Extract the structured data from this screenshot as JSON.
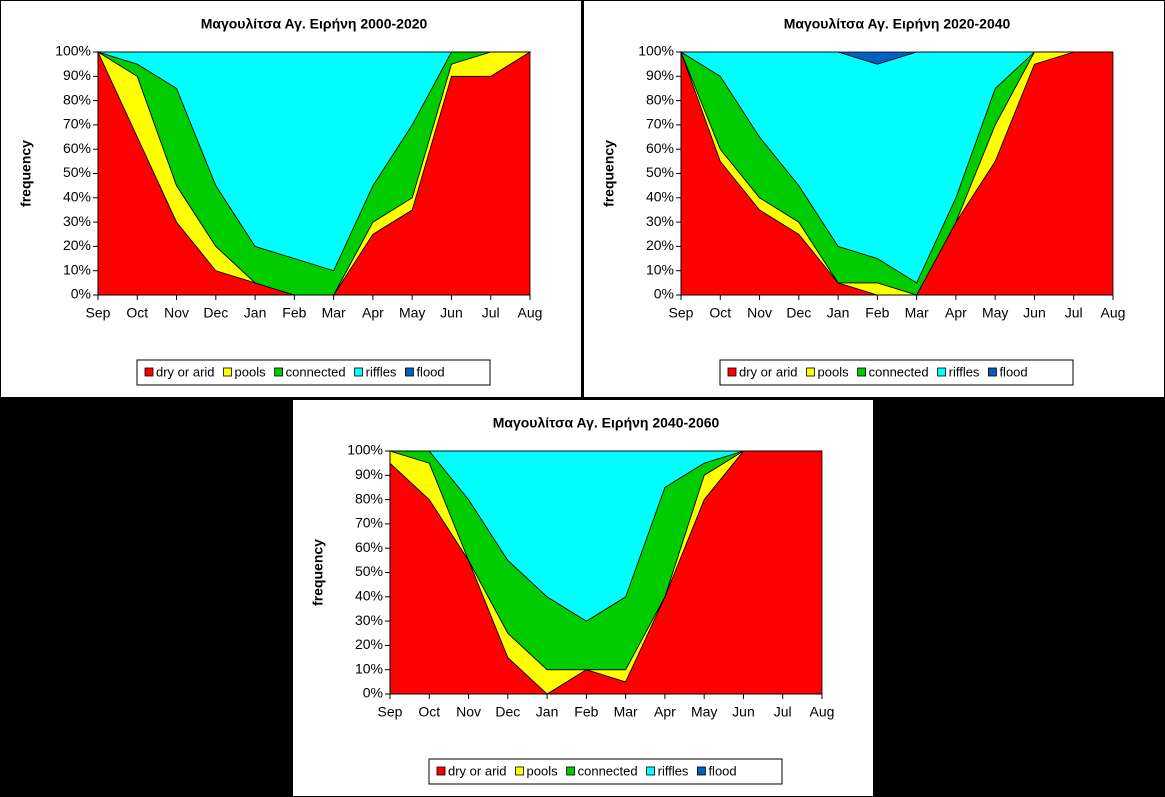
{
  "chart_data": [
    {
      "type": "area",
      "stacked": true,
      "title": "Μαγουλίτσα Αγ. Ειρήνη 2000-2020",
      "y_label": "frequency",
      "categories": [
        "Sep",
        "Oct",
        "Nov",
        "Dec",
        "Jan",
        "Feb",
        "Mar",
        "Apr",
        "May",
        "Jun",
        "Jul",
        "Aug"
      ],
      "ylim": [
        0,
        100
      ],
      "yticks": [
        {
          "value": 0,
          "label": "0%"
        },
        {
          "value": 10,
          "label": "10%"
        },
        {
          "value": 20,
          "label": "20%"
        },
        {
          "value": 30,
          "label": "30%"
        },
        {
          "value": 40,
          "label": "40%"
        },
        {
          "value": 50,
          "label": "50%"
        },
        {
          "value": 60,
          "label": "60%"
        },
        {
          "value": 70,
          "label": "70%"
        },
        {
          "value": 80,
          "label": "80%"
        },
        {
          "value": 90,
          "label": "90%"
        },
        {
          "value": 100,
          "label": "100%"
        }
      ],
      "series": [
        {
          "name": "dry or arid",
          "color": "#ff0000",
          "values": [
            100,
            65,
            30,
            10,
            5,
            0,
            0,
            25,
            35,
            90,
            90,
            100
          ]
        },
        {
          "name": "pools",
          "color": "#ffff00",
          "values": [
            0,
            25,
            15,
            10,
            0,
            0,
            0,
            5,
            5,
            5,
            10,
            0
          ]
        },
        {
          "name": "connected",
          "color": "#00cc00",
          "values": [
            0,
            5,
            40,
            25,
            15,
            15,
            10,
            15,
            30,
            5,
            0,
            0
          ]
        },
        {
          "name": "riffles",
          "color": "#00ffff",
          "values": [
            0,
            5,
            15,
            55,
            80,
            85,
            90,
            55,
            30,
            0,
            0,
            0
          ]
        },
        {
          "name": "flood",
          "color": "#0060c0",
          "values": [
            0,
            0,
            0,
            0,
            0,
            0,
            0,
            0,
            0,
            0,
            0,
            0
          ]
        }
      ]
    },
    {
      "type": "area",
      "stacked": true,
      "title": "Μαγουλίτσα Αγ. Ειρήνη 2020-2040",
      "y_label": "frequency",
      "categories": [
        "Sep",
        "Oct",
        "Nov",
        "Dec",
        "Jan",
        "Feb",
        "Mar",
        "Apr",
        "May",
        "Jun",
        "Jul",
        "Aug"
      ],
      "ylim": [
        0,
        100
      ],
      "yticks": [
        {
          "value": 0,
          "label": "0%"
        },
        {
          "value": 10,
          "label": "10%"
        },
        {
          "value": 20,
          "label": "20%"
        },
        {
          "value": 30,
          "label": "30%"
        },
        {
          "value": 40,
          "label": "40%"
        },
        {
          "value": 50,
          "label": "50%"
        },
        {
          "value": 60,
          "label": "60%"
        },
        {
          "value": 70,
          "label": "70%"
        },
        {
          "value": 80,
          "label": "80%"
        },
        {
          "value": 90,
          "label": "90%"
        },
        {
          "value": 100,
          "label": "100%"
        }
      ],
      "series": [
        {
          "name": "dry or arid",
          "color": "#ff0000",
          "values": [
            100,
            55,
            35,
            25,
            5,
            0,
            0,
            30,
            55,
            95,
            100,
            100
          ]
        },
        {
          "name": "pools",
          "color": "#ffff00",
          "values": [
            0,
            5,
            5,
            5,
            0,
            5,
            0,
            0,
            15,
            5,
            0,
            0
          ]
        },
        {
          "name": "connected",
          "color": "#00cc00",
          "values": [
            0,
            30,
            25,
            15,
            15,
            10,
            5,
            10,
            15,
            0,
            0,
            0
          ]
        },
        {
          "name": "riffles",
          "color": "#00ffff",
          "values": [
            0,
            10,
            35,
            55,
            80,
            80,
            95,
            60,
            15,
            0,
            0,
            0
          ]
        },
        {
          "name": "flood",
          "color": "#0060c0",
          "values": [
            0,
            0,
            0,
            0,
            0,
            5,
            0,
            0,
            0,
            0,
            0,
            0
          ]
        }
      ]
    },
    {
      "type": "area",
      "stacked": true,
      "title": "Μαγουλίτσα Αγ. Ειρήνη 2040-2060",
      "y_label": "frequency",
      "categories": [
        "Sep",
        "Oct",
        "Nov",
        "Dec",
        "Jan",
        "Feb",
        "Mar",
        "Apr",
        "May",
        "Jun",
        "Jul",
        "Aug"
      ],
      "ylim": [
        0,
        100
      ],
      "yticks": [
        {
          "value": 0,
          "label": "0%"
        },
        {
          "value": 10,
          "label": "10%"
        },
        {
          "value": 20,
          "label": "20%"
        },
        {
          "value": 30,
          "label": "30%"
        },
        {
          "value": 40,
          "label": "40%"
        },
        {
          "value": 50,
          "label": "50%"
        },
        {
          "value": 60,
          "label": "60%"
        },
        {
          "value": 70,
          "label": "70%"
        },
        {
          "value": 80,
          "label": "80%"
        },
        {
          "value": 90,
          "label": "90%"
        },
        {
          "value": 100,
          "label": "100%"
        }
      ],
      "series": [
        {
          "name": "dry or arid",
          "color": "#ff0000",
          "values": [
            95,
            80,
            55,
            15,
            0,
            10,
            5,
            40,
            80,
            100,
            100,
            100
          ]
        },
        {
          "name": "pools",
          "color": "#ffff00",
          "values": [
            5,
            15,
            0,
            10,
            10,
            0,
            5,
            0,
            10,
            0,
            0,
            0
          ]
        },
        {
          "name": "connected",
          "color": "#00cc00",
          "values": [
            0,
            5,
            25,
            30,
            30,
            20,
            30,
            45,
            5,
            0,
            0,
            0
          ]
        },
        {
          "name": "riffles",
          "color": "#00ffff",
          "values": [
            0,
            0,
            20,
            45,
            60,
            70,
            60,
            15,
            5,
            0,
            0,
            0
          ]
        },
        {
          "name": "flood",
          "color": "#0060c0",
          "values": [
            0,
            0,
            0,
            0,
            0,
            0,
            0,
            0,
            0,
            0,
            0,
            0
          ]
        }
      ]
    }
  ]
}
